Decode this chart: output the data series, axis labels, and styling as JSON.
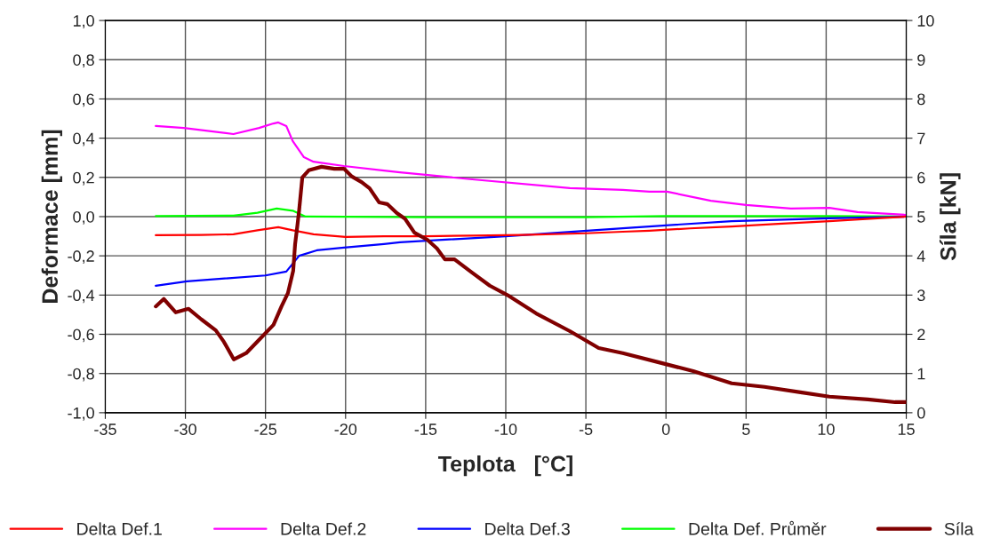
{
  "chart_data": {
    "type": "line",
    "xlabel": "Teplota   [°C]",
    "ylabel": "Deformace [mm]",
    "y2label": "Síla [kN]",
    "xlim": [
      -35,
      15
    ],
    "xticks": [
      -35,
      -30,
      -25,
      -20,
      -15,
      -10,
      -5,
      0,
      5,
      10,
      15
    ],
    "ylim": [
      -1.0,
      1.0
    ],
    "yticks": [
      {
        "value": -1.0,
        "label": "-1,0"
      },
      {
        "value": -0.8,
        "label": "-0,8"
      },
      {
        "value": -0.6,
        "label": "-0,6"
      },
      {
        "value": -0.4,
        "label": "-0,4"
      },
      {
        "value": -0.2,
        "label": "-0,2"
      },
      {
        "value": 0.0,
        "label": "0,0"
      },
      {
        "value": 0.2,
        "label": "0,2"
      },
      {
        "value": 0.4,
        "label": "0,4"
      },
      {
        "value": 0.6,
        "label": "0,6"
      },
      {
        "value": 0.8,
        "label": "0,8"
      },
      {
        "value": 1.0,
        "label": "1,0"
      }
    ],
    "y2lim": [
      0,
      10
    ],
    "y2ticks": [
      0,
      1,
      2,
      3,
      4,
      5,
      6,
      7,
      8,
      9,
      10
    ],
    "grid": true,
    "legend": "bottom",
    "marker": "none",
    "line_style": "solid",
    "series": [
      {
        "name": "Delta Def.1",
        "color": "#ff0000",
        "x": [
          -31.85,
          -29,
          -27,
          -25.5,
          -24.2,
          -23.3,
          -22,
          -20,
          -17.6,
          -15,
          -12,
          -9,
          -5,
          -2.7,
          -1.04,
          1.5,
          4.1,
          7,
          10.2,
          12.5,
          15
        ],
        "values": [
          -0.095,
          -0.093,
          -0.09,
          -0.07,
          -0.054,
          -0.07,
          -0.09,
          -0.104,
          -0.1,
          -0.1,
          -0.097,
          -0.093,
          -0.085,
          -0.077,
          -0.072,
          -0.06,
          -0.05,
          -0.037,
          -0.023,
          -0.012,
          0.0
        ]
      },
      {
        "name": "Delta Def.2",
        "color": "#ff00ff",
        "x": [
          -31.85,
          -30.1,
          -27,
          -25.4,
          -24.5,
          -24.2,
          -23.7,
          -23.3,
          -22.6,
          -22.0,
          -20.1,
          -17.6,
          -16.6,
          -12.1,
          -6.0,
          -2.7,
          -1.04,
          0.07,
          2.8,
          5.0,
          7.8,
          10.2,
          11.96,
          15
        ],
        "values": [
          0.462,
          0.452,
          0.421,
          0.452,
          0.475,
          0.48,
          0.462,
          0.385,
          0.303,
          0.28,
          0.258,
          0.235,
          0.226,
          0.19,
          0.145,
          0.136,
          0.127,
          0.127,
          0.081,
          0.059,
          0.041,
          0.045,
          0.023,
          0.009
        ]
      },
      {
        "name": "Delta Def.3",
        "color": "#0000ff",
        "x": [
          -31.85,
          -29.9,
          -25,
          -23.7,
          -22.9,
          -21.8,
          -20.1,
          -17.6,
          -16.6,
          -10,
          -2.7,
          -1.04,
          4.1,
          10.2,
          15
        ],
        "values": [
          -0.353,
          -0.33,
          -0.3,
          -0.28,
          -0.2,
          -0.172,
          -0.158,
          -0.14,
          -0.131,
          -0.1,
          -0.059,
          -0.05,
          -0.023,
          -0.009,
          0.0
        ]
      },
      {
        "name": "Delta Def. Průměr",
        "color": "#00ff00",
        "x": [
          -31.85,
          -27,
          -25.5,
          -24.3,
          -23.3,
          -22.5,
          -15,
          -5,
          0,
          10,
          15
        ],
        "values": [
          0.003,
          0.005,
          0.02,
          0.041,
          0.03,
          0.0,
          -0.003,
          -0.003,
          0.003,
          0.003,
          0.0
        ]
      },
      {
        "name": "Síla",
        "color": "#800000",
        "axis": "y2",
        "x": [
          -31.85,
          -31.35,
          -30.6,
          -29.8,
          -29.0,
          -28.1,
          -27.6,
          -26.98,
          -26.2,
          -25.4,
          -24.5,
          -24.0,
          -23.6,
          -23.27,
          -23.15,
          -23.0,
          -22.9,
          -22.7,
          -22.3,
          -21.5,
          -20.7,
          -20.1,
          -19.6,
          -19.0,
          -18.5,
          -17.9,
          -17.4,
          -16.8,
          -16.3,
          -15.7,
          -14.9,
          -14.3,
          -13.8,
          -13.2,
          -12.1,
          -11.0,
          -9.9,
          -8.1,
          -6.0,
          -4.2,
          -2.7,
          -0.5,
          1.7,
          4.1,
          6.15,
          8.4,
          10.2,
          12.6,
          14.3,
          15
        ],
        "values": [
          2.71,
          2.9,
          2.56,
          2.65,
          2.38,
          2.1,
          1.81,
          1.36,
          1.52,
          1.86,
          2.24,
          2.71,
          3.05,
          3.62,
          4.3,
          4.8,
          5.16,
          6.0,
          6.18,
          6.27,
          6.22,
          6.22,
          6.02,
          5.88,
          5.72,
          5.36,
          5.32,
          5.09,
          4.95,
          4.59,
          4.41,
          4.19,
          3.91,
          3.91,
          3.57,
          3.24,
          3.0,
          2.53,
          2.08,
          1.65,
          1.52,
          1.29,
          1.06,
          0.75,
          0.66,
          0.52,
          0.41,
          0.34,
          0.27,
          0.27
        ]
      }
    ]
  }
}
